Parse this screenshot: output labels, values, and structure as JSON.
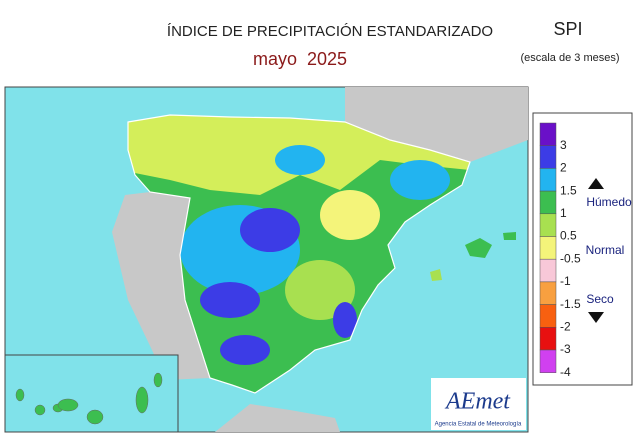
{
  "header": {
    "title": "ÍNDICE DE PRECIPITACIÓN ESTANDARIZADO",
    "subtitle": "mayo  2025",
    "index": "SPI",
    "scale_note": "(escala de 3 meses)"
  },
  "legend": {
    "labels": [
      "3",
      "2",
      "1.5",
      "1",
      "0.5",
      "-0.5",
      "-1",
      "-1.5",
      "-2",
      "-3",
      "-4"
    ],
    "colors": [
      "#6a10c8",
      "#3c3ce6",
      "#22b4f0",
      "#3cbe50",
      "#a8e050",
      "#f4f47a",
      "#f8c8d8",
      "#f8a040",
      "#f86010",
      "#e81010",
      "#d040f0"
    ],
    "wet": "Húmedo",
    "normal": "Normal",
    "dry": "Seco"
  },
  "logo": {
    "name": "AEmet",
    "agency": "Agencia Estatal de Meteorología"
  }
}
